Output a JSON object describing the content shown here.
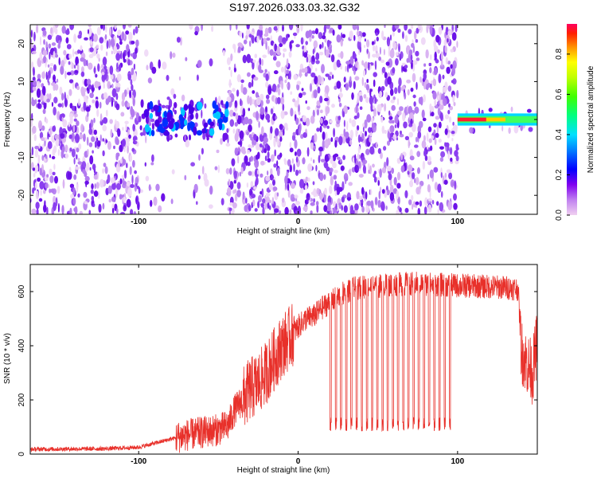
{
  "figure_title": "S197.2026.033.03.32.G32",
  "chart_data": [
    {
      "type": "heatmap",
      "title": "S197.2026.033.03.32.G32",
      "xlabel": "Height of straight line (km)",
      "ylabel": "Frequency (Hz)",
      "xlim": [
        -168,
        150
      ],
      "ylim": [
        -25,
        25
      ],
      "xticks": [
        "-100",
        "0",
        "100"
      ],
      "yticks": [
        "20",
        "10",
        "0",
        "-10",
        "-20"
      ],
      "colorbar": {
        "label": "Normalized spectral amplitude",
        "range": [
          0,
          0.95
        ],
        "ticks": [
          "0.0",
          "0.2",
          "0.4",
          "0.6",
          "0.8"
        ],
        "colors": [
          "#f0d0f0",
          "#9d4bf0",
          "#5b00e8",
          "#0000ff",
          "#00d8ff",
          "#00ff60",
          "#90ff00",
          "#ffff00",
          "#ff8000",
          "#ff0040"
        ]
      },
      "regions": [
        {
          "x_from": -168,
          "x_to": -100,
          "content": "noise"
        },
        {
          "x_from": -100,
          "x_to": -44,
          "content": "sparse noise with signal cluster near 0 Hz, amplitude ~0.3"
        },
        {
          "x_from": -44,
          "x_to": 100,
          "content": "noise"
        },
        {
          "x_from": 100,
          "x_to": 150,
          "content": "strong tone at 0 Hz, amplitude 0.4-0.95"
        }
      ]
    },
    {
      "type": "line",
      "xlabel": "Height of straight line (km)",
      "ylabel": "SNR (10 * v/v)",
      "xlim": [
        -168,
        150
      ],
      "ylim": [
        0,
        700
      ],
      "xticks": [
        "-100",
        "0",
        "100"
      ],
      "yticks": [
        "0",
        "200",
        "400",
        "600"
      ],
      "color": "#e8302a",
      "series": [
        {
          "name": "SNR",
          "x": [
            -168,
            -120,
            -100,
            -90,
            -80,
            -70,
            -60,
            -50,
            -44,
            -40,
            -35,
            -30,
            -25,
            -20,
            -15,
            -10,
            -5,
            0,
            5,
            10,
            15,
            20,
            25,
            30,
            35,
            40,
            50,
            60,
            70,
            80,
            90,
            100,
            110,
            120,
            130,
            135,
            138,
            140,
            143,
            145,
            147,
            150
          ],
          "y": [
            18,
            20,
            25,
            40,
            55,
            70,
            80,
            90,
            105,
            160,
            200,
            240,
            260,
            300,
            350,
            400,
            430,
            470,
            500,
            510,
            540,
            560,
            580,
            600,
            610,
            615,
            620,
            625,
            630,
            628,
            625,
            622,
            620,
            618,
            615,
            612,
            610,
            380,
            340,
            320,
            300,
            420
          ]
        }
      ],
      "dropouts": {
        "x_from": 20,
        "x_to": 98,
        "count": 24,
        "low_value": 110
      }
    }
  ]
}
